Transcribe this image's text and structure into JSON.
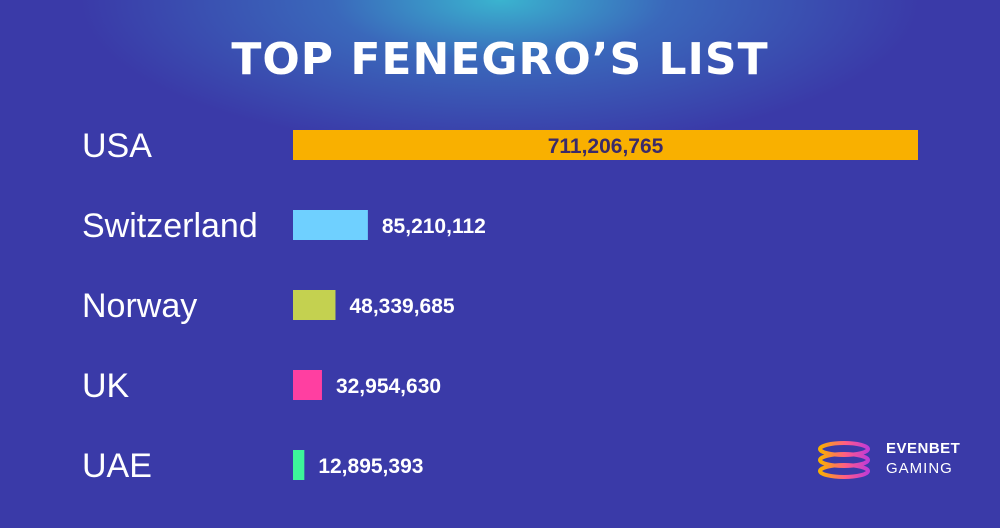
{
  "colors": {
    "background": "#3a3aa8",
    "glow": "#3ac9d6",
    "text": "#ffffff",
    "label_on_light_bar": "#3a3aa8"
  },
  "chart_data": {
    "type": "bar",
    "orientation": "horizontal",
    "title": "TOP FENEGRO’S LIST",
    "categories": [
      "USA",
      "Switzerland",
      "Norway",
      "UK",
      "UAE"
    ],
    "values": [
      711206765,
      85210112,
      48339685,
      32954630,
      12895393
    ],
    "value_labels": [
      "711,206,765",
      "85,210,112",
      "48,339,685",
      "32,954,630",
      "12,895,393"
    ],
    "bar_colors": [
      "#f9b000",
      "#6fd0ff",
      "#c4d150",
      "#ff3fa1",
      "#3df59a"
    ],
    "xlabel": "",
    "ylabel": "",
    "xlim": [
      0,
      711206765
    ],
    "grid": false,
    "legend": "none"
  },
  "brand": {
    "logo_icon": "evenbet-rings-logo-icon",
    "line1": "EVENBET",
    "line2": "GAMING"
  }
}
